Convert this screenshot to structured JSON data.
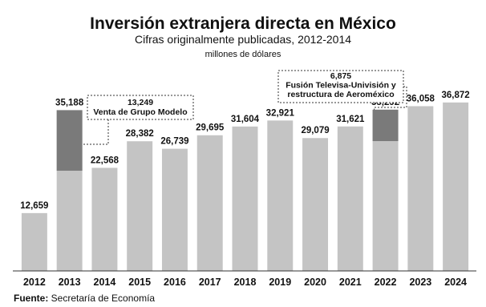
{
  "chart_data": {
    "type": "bar",
    "title": "Inversión extranjera directa en México",
    "subtitle": "Cifras originalmente publicadas, 2012-2014",
    "unit_label": "millones de dólares",
    "categories": [
      "2012",
      "2013",
      "2014",
      "2015",
      "2016",
      "2017",
      "2018",
      "2019",
      "2020",
      "2021",
      "2022",
      "2023",
      "2024"
    ],
    "values": [
      12659,
      35188,
      22568,
      28382,
      26739,
      29695,
      31604,
      32921,
      29079,
      31621,
      35292,
      36058,
      36872
    ],
    "value_labels": [
      "12,659",
      "35,188",
      "22,568",
      "28,382",
      "26,739",
      "29,695",
      "31,604",
      "32,921",
      "29,079",
      "31,621",
      "35,292",
      "36,058",
      "36,872"
    ],
    "highlight_segments": [
      {
        "category": "2013",
        "value": 13249
      },
      {
        "category": "2022",
        "value": 6875
      }
    ],
    "annotations": [
      {
        "category": "2013",
        "lines": [
          "13,249",
          "Venta de Grupo Modelo"
        ]
      },
      {
        "category": "2022",
        "lines": [
          "6,875",
          "Fusión Televisa-Univisión y",
          "restructura de Aeroméxico"
        ]
      }
    ],
    "ylim": [
      0,
      40000
    ],
    "grid": false,
    "legend": "none",
    "colors": {
      "bar": "#c4c4c4",
      "highlight": "#7a7a7a",
      "axis": "#333333"
    }
  },
  "footer": {
    "source_label": "Fuente:",
    "source_text": " Secretaría de Economía"
  }
}
